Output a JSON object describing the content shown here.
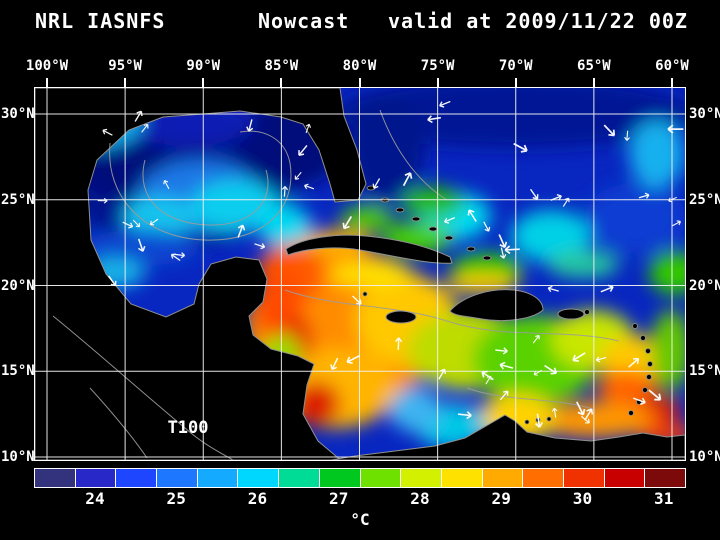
{
  "title": {
    "model": "NRL IASNFS",
    "product": "Nowcast",
    "valid": "valid at 2009/11/22 00Z"
  },
  "map": {
    "annotation": "T100",
    "lon_ticks": [
      "100°W",
      "95°W",
      "90°W",
      "85°W",
      "80°W",
      "75°W",
      "70°W",
      "65°W",
      "60°W"
    ],
    "lat_ticks": [
      "30°N",
      "25°N",
      "20°N",
      "15°N",
      "10°N"
    ]
  },
  "colorbar": {
    "units": "°C",
    "tick_labels": [
      "24",
      "25",
      "26",
      "27",
      "28",
      "29",
      "30",
      "31"
    ],
    "segment_colors": [
      "#32327d",
      "#2828c8",
      "#1e46ff",
      "#1e78ff",
      "#14aaff",
      "#00d7ff",
      "#00dc96",
      "#00c81e",
      "#6ee100",
      "#d2f000",
      "#ffe100",
      "#ffaa00",
      "#ff6e00",
      "#f03200",
      "#c80000",
      "#7d0a0a"
    ]
  }
}
